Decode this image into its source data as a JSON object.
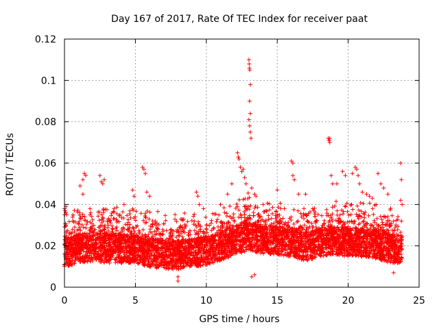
{
  "chart_data": {
    "type": "scatter",
    "title": "Day 167 of 2017, Rate Of TEC Index for receiver paat",
    "xlabel": "GPS time / hours",
    "ylabel": "ROTI / TECUs",
    "xlim": [
      0,
      25
    ],
    "ylim": [
      0,
      0.12
    ],
    "x_ticks": [
      "0",
      "5",
      "10",
      "15",
      "20",
      "25"
    ],
    "y_ticks": [
      "0",
      "0.02",
      "0.04",
      "0.06",
      "0.08",
      "0.1",
      "0.12"
    ],
    "grid": true,
    "marker": "+",
    "color": "#ff0000",
    "baseline_profile": [
      [
        0.0,
        0.016
      ],
      [
        1.0,
        0.018
      ],
      [
        2.0,
        0.019
      ],
      [
        3.0,
        0.018
      ],
      [
        4.0,
        0.018
      ],
      [
        5.0,
        0.018
      ],
      [
        6.0,
        0.016
      ],
      [
        7.0,
        0.015
      ],
      [
        8.0,
        0.015
      ],
      [
        9.0,
        0.016
      ],
      [
        10.0,
        0.017
      ],
      [
        11.0,
        0.019
      ],
      [
        12.0,
        0.022
      ],
      [
        13.0,
        0.024
      ],
      [
        14.0,
        0.022
      ],
      [
        15.0,
        0.022
      ],
      [
        16.0,
        0.021
      ],
      [
        17.0,
        0.019
      ],
      [
        18.0,
        0.021
      ],
      [
        19.0,
        0.022
      ],
      [
        20.0,
        0.021
      ],
      [
        21.0,
        0.021
      ],
      [
        22.0,
        0.02
      ],
      [
        23.0,
        0.018
      ],
      [
        23.8,
        0.018
      ]
    ],
    "points": [
      [
        0.0,
        0.038
      ],
      [
        0.05,
        0.037
      ],
      [
        0.1,
        0.039
      ],
      [
        0.1,
        0.036
      ],
      [
        0.15,
        0.035
      ],
      [
        1.1,
        0.049
      ],
      [
        1.3,
        0.052
      ],
      [
        1.4,
        0.055
      ],
      [
        1.5,
        0.054
      ],
      [
        1.3,
        0.045
      ],
      [
        1.8,
        0.038
      ],
      [
        1.85,
        0.036
      ],
      [
        2.5,
        0.054
      ],
      [
        2.6,
        0.051
      ],
      [
        2.7,
        0.05
      ],
      [
        2.8,
        0.052
      ],
      [
        3.5,
        0.038
      ],
      [
        4.2,
        0.04
      ],
      [
        4.8,
        0.047
      ],
      [
        4.9,
        0.044
      ],
      [
        5.5,
        0.058
      ],
      [
        5.6,
        0.057
      ],
      [
        5.7,
        0.055
      ],
      [
        5.8,
        0.046
      ],
      [
        6.0,
        0.044
      ],
      [
        6.4,
        0.032
      ],
      [
        7.5,
        0.028
      ],
      [
        8.0,
        0.005
      ],
      [
        8.0,
        0.003
      ],
      [
        9.3,
        0.046
      ],
      [
        9.4,
        0.044
      ],
      [
        9.5,
        0.04
      ],
      [
        9.8,
        0.038
      ],
      [
        11.0,
        0.04
      ],
      [
        11.5,
        0.045
      ],
      [
        11.8,
        0.05
      ],
      [
        12.2,
        0.065
      ],
      [
        12.25,
        0.063
      ],
      [
        12.3,
        0.062
      ],
      [
        12.4,
        0.058
      ],
      [
        12.5,
        0.056
      ],
      [
        12.6,
        0.057
      ],
      [
        12.7,
        0.053
      ],
      [
        12.8,
        0.05
      ],
      [
        13.0,
        0.11
      ],
      [
        13.02,
        0.108
      ],
      [
        13.04,
        0.106
      ],
      [
        13.06,
        0.105
      ],
      [
        13.1,
        0.098
      ],
      [
        13.05,
        0.09
      ],
      [
        13.1,
        0.084
      ],
      [
        13.0,
        0.081
      ],
      [
        13.05,
        0.078
      ],
      [
        13.1,
        0.075
      ],
      [
        13.15,
        0.072
      ],
      [
        13.2,
        0.048
      ],
      [
        13.4,
        0.045
      ],
      [
        13.5,
        0.044
      ],
      [
        13.2,
        0.005
      ],
      [
        13.4,
        0.006
      ],
      [
        14.0,
        0.04
      ],
      [
        15.0,
        0.047
      ],
      [
        15.5,
        0.038
      ],
      [
        16.0,
        0.061
      ],
      [
        16.1,
        0.06
      ],
      [
        16.1,
        0.054
      ],
      [
        16.2,
        0.052
      ],
      [
        16.5,
        0.045
      ],
      [
        17.0,
        0.045
      ],
      [
        17.5,
        0.038
      ],
      [
        18.6,
        0.072
      ],
      [
        18.65,
        0.071
      ],
      [
        18.7,
        0.072
      ],
      [
        18.7,
        0.07
      ],
      [
        18.8,
        0.054
      ],
      [
        18.9,
        0.05
      ],
      [
        19.2,
        0.05
      ],
      [
        19.6,
        0.056
      ],
      [
        19.8,
        0.054
      ],
      [
        20.3,
        0.055
      ],
      [
        20.5,
        0.058
      ],
      [
        20.6,
        0.057
      ],
      [
        20.7,
        0.054
      ],
      [
        20.8,
        0.05
      ],
      [
        21.0,
        0.046
      ],
      [
        21.3,
        0.045
      ],
      [
        21.5,
        0.044
      ],
      [
        21.7,
        0.043
      ],
      [
        22.1,
        0.055
      ],
      [
        22.3,
        0.05
      ],
      [
        22.5,
        0.048
      ],
      [
        22.8,
        0.045
      ],
      [
        23.0,
        0.012
      ],
      [
        23.2,
        0.007
      ],
      [
        23.5,
        0.015
      ],
      [
        23.7,
        0.06
      ],
      [
        23.75,
        0.052
      ],
      [
        23.7,
        0.042
      ],
      [
        23.8,
        0.04
      ],
      [
        23.75,
        0.032
      ]
    ]
  }
}
